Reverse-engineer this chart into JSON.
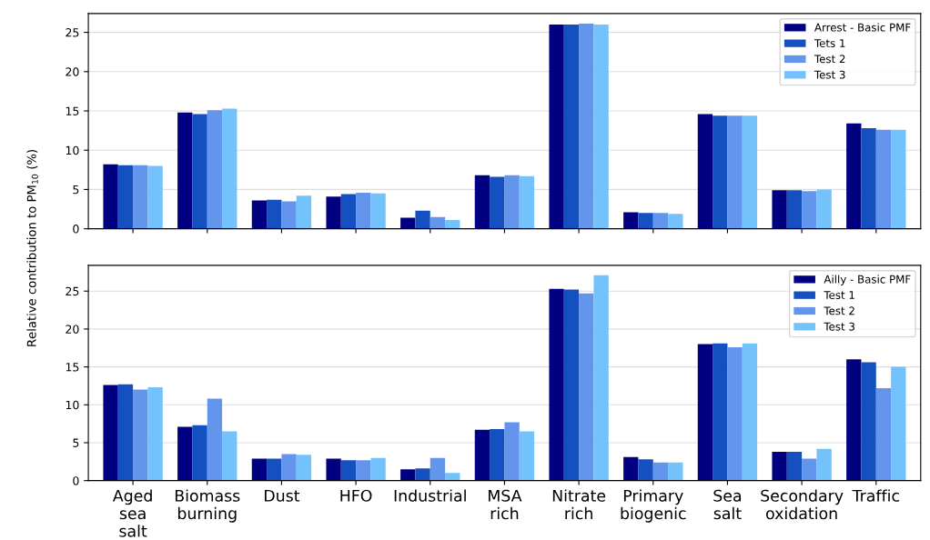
{
  "chart_data": [
    {
      "type": "bar",
      "categories": [
        null,
        null,
        null,
        null,
        null,
        null,
        null,
        null,
        null,
        null,
        null
      ],
      "series": [
        {
          "name": "Arrest - Basic PMF",
          "color": "#000080",
          "values": [
            8.2,
            14.8,
            3.6,
            4.1,
            1.4,
            6.8,
            26.0,
            2.1,
            14.6,
            4.9,
            13.4
          ]
        },
        {
          "name": "Tets 1",
          "color": "#1550c0",
          "values": [
            8.1,
            14.6,
            3.7,
            4.4,
            2.3,
            6.6,
            26.0,
            2.0,
            14.4,
            4.9,
            12.8
          ]
        },
        {
          "name": "Test 2",
          "color": "#6495ed",
          "values": [
            8.1,
            15.1,
            3.5,
            4.6,
            1.5,
            6.8,
            26.1,
            2.0,
            14.4,
            4.8,
            12.6
          ]
        },
        {
          "name": "Test 3",
          "color": "#73c2fb",
          "values": [
            8.0,
            15.3,
            4.2,
            4.5,
            1.1,
            6.7,
            26.0,
            1.9,
            14.4,
            5.0,
            12.6
          ]
        }
      ],
      "ylim": [
        0,
        27.4
      ],
      "yticks": [
        0,
        5,
        10,
        15,
        20,
        25
      ],
      "grid": "y",
      "legend": "top right",
      "tick_labels": "y"
    },
    {
      "type": "bar",
      "ylabel": "Relative contribution to PM$_{10}$ (%)",
      "categories": [
        "Aged\nsea\nsalt",
        "Biomass\nburning",
        "Dust",
        "HFO",
        "Industrial",
        "MSA\nrich",
        "Nitrate\nrich",
        "Primary\nbiogenic",
        "Sea\nsalt",
        "Secondary\noxidation",
        "Traffic"
      ],
      "series": [
        {
          "name": "Ailly - Basic PMF",
          "color": "#000080",
          "values": [
            12.6,
            7.1,
            2.9,
            2.9,
            1.5,
            6.7,
            25.3,
            3.1,
            18.0,
            3.8,
            16.0
          ]
        },
        {
          "name": "Test 1",
          "color": "#1550c0",
          "values": [
            12.7,
            7.3,
            2.9,
            2.7,
            1.6,
            6.8,
            25.2,
            2.8,
            18.1,
            3.8,
            15.6
          ]
        },
        {
          "name": "Test 2",
          "color": "#6495ed",
          "values": [
            12.0,
            10.8,
            3.5,
            2.7,
            3.0,
            7.7,
            24.7,
            2.4,
            17.6,
            2.9,
            12.2
          ]
        },
        {
          "name": "Test 3",
          "color": "#73c2fb",
          "values": [
            12.3,
            6.5,
            3.4,
            3.0,
            1.0,
            6.5,
            27.1,
            2.4,
            18.1,
            4.2,
            15.0
          ]
        }
      ],
      "ylim": [
        0,
        28.4
      ],
      "yticks": [
        0,
        5,
        10,
        15,
        20,
        25
      ],
      "grid": "y",
      "legend": "top right"
    }
  ]
}
